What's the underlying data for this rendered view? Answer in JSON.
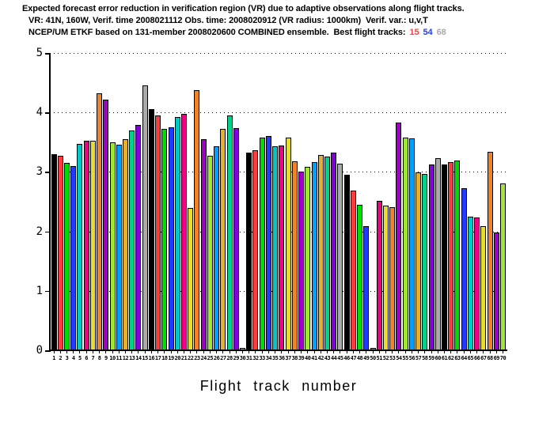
{
  "title": {
    "line1": "Expected forecast error reduction in verification region (VR) due to adaptive observations along flight tracks.",
    "line2": "VR: 41N, 160W, Verif. time 2008021112 Obs. time: 2008020912 (VR radius: 1000km)  Verif. var.: u,v,T",
    "line3_prefix": "NCEP/UM ETKF based on 131-member 2008020600 COMBINED ensemble.  Best flight tracks:",
    "best_tracks": [
      {
        "label": "15",
        "color": "#fa3c3c"
      },
      {
        "label": "54",
        "color": "#1e3cff"
      },
      {
        "label": "68",
        "color": "#aaaaaa"
      }
    ]
  },
  "chart_data": {
    "type": "bar",
    "title": "Expected forecast error reduction in verification region (VR) due to adaptive observations along flight tracks.",
    "xlabel": "Flight track number",
    "ylabel": "",
    "ylim": [
      0,
      5
    ],
    "yticks": [
      0,
      1,
      2,
      3,
      4,
      5
    ],
    "grid": "horizontal dotted lines at each y tick, drawn behind bars",
    "legend": "none",
    "categories": [
      1,
      2,
      3,
      4,
      5,
      6,
      7,
      8,
      9,
      10,
      11,
      12,
      13,
      14,
      15,
      16,
      17,
      18,
      19,
      20,
      21,
      22,
      23,
      24,
      25,
      26,
      27,
      28,
      29,
      30,
      31,
      32,
      33,
      34,
      35,
      36,
      37,
      38,
      39,
      40,
      41,
      42,
      43,
      44,
      45,
      46,
      47,
      48,
      49,
      50,
      51,
      52,
      53,
      54,
      55,
      56,
      57,
      58,
      59,
      60,
      61,
      62,
      63,
      64,
      65,
      66,
      67,
      68,
      69,
      70
    ],
    "values": [
      3.3,
      3.27,
      3.15,
      3.1,
      3.47,
      3.52,
      3.52,
      4.32,
      4.22,
      3.5,
      3.46,
      3.55,
      3.7,
      3.79,
      4.46,
      4.06,
      3.95,
      3.73,
      3.75,
      3.92,
      3.98,
      2.4,
      4.37,
      3.55,
      3.27,
      3.43,
      3.72,
      3.95,
      3.74,
      0.04,
      3.33,
      3.37,
      3.58,
      3.6,
      3.43,
      3.44,
      3.58,
      3.18,
      3.0,
      3.08,
      3.17,
      3.28,
      3.26,
      3.32,
      3.14,
      2.95,
      2.68,
      2.45,
      2.09,
      0.04,
      2.51,
      2.43,
      2.41,
      3.83,
      3.58,
      3.56,
      2.99,
      2.96,
      3.12,
      3.23,
      3.12,
      3.16,
      3.19,
      2.72,
      2.25,
      2.24,
      2.09,
      3.34,
      1.98,
      2.81
    ],
    "bar_colors_cycle": [
      "#000000",
      "#fa3c3c",
      "#00dc00",
      "#1e3cff",
      "#00c8c8",
      "#f00082",
      "#e6dc32",
      "#f08228",
      "#a000c8",
      "#a0e632",
      "#00a0ff",
      "#e6af2d",
      "#00d28c",
      "#8200dc",
      "#aaaaaa"
    ],
    "bar_outline_color": "#000000",
    "notes": "bars colored by cycling 15-color palette; bars 30 and 50 are near zero"
  }
}
